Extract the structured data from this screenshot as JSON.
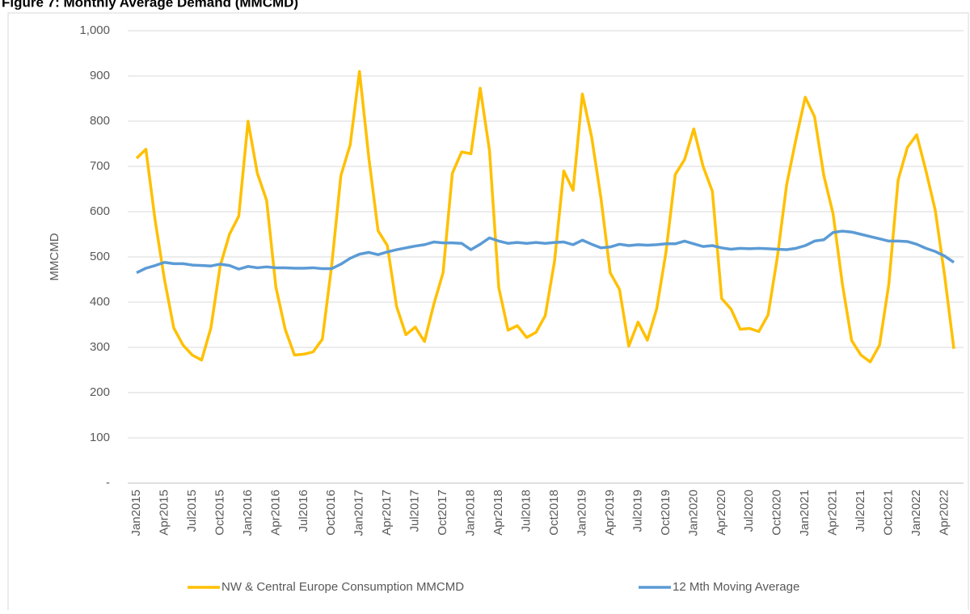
{
  "chart_data": {
    "type": "line",
    "title": "Figure 7: Monthly Average Demand (MMCMD)",
    "y_label": "MMCMD",
    "categories": [
      "Jan2015",
      null,
      null,
      "Apr2015",
      null,
      null,
      "Jul2015",
      null,
      null,
      "Oct2015",
      null,
      null,
      "Jan2016",
      null,
      null,
      "Apr2016",
      null,
      null,
      "Jul2016",
      null,
      null,
      "Oct2016",
      null,
      null,
      "Jan2017",
      null,
      null,
      "Apr2017",
      null,
      null,
      "Jul2017",
      null,
      null,
      "Oct2017",
      null,
      null,
      "Jan2018",
      null,
      null,
      "Apr2018",
      null,
      null,
      "Jul2018",
      null,
      null,
      "Oct2018",
      null,
      null,
      "Jan2019",
      null,
      null,
      "Apr2019",
      null,
      null,
      "Jul2019",
      null,
      null,
      "Oct2019",
      null,
      null,
      "Jan2020",
      null,
      null,
      "Apr2020",
      null,
      null,
      "Jul2020",
      null,
      null,
      "Oct2020",
      null,
      null,
      "Jan2021",
      null,
      null,
      "Apr2021",
      null,
      null,
      "Jul2021",
      null,
      null,
      "Oct2021",
      null,
      null,
      "Jan2022",
      null,
      null,
      "Apr2022",
      null
    ],
    "series": [
      {
        "name": "NW & Central Europe Consumption MMCMD",
        "color": "#FFC000",
        "values": [
          718,
          738,
          580,
          450,
          343,
          305,
          283,
          272,
          343,
          480,
          550,
          590,
          800,
          685,
          625,
          433,
          340,
          283,
          285,
          290,
          318,
          480,
          680,
          748,
          910,
          720,
          558,
          525,
          390,
          328,
          345,
          313,
          395,
          465,
          685,
          732,
          728,
          873,
          735,
          432,
          338,
          348,
          322,
          333,
          370,
          490,
          690,
          647,
          860,
          765,
          630,
          465,
          428,
          303,
          356,
          316,
          385,
          510,
          682,
          715,
          783,
          700,
          645,
          408,
          385,
          340,
          342,
          335,
          372,
          500,
          660,
          760,
          853,
          810,
          680,
          595,
          440,
          315,
          283,
          268,
          305,
          440,
          670,
          742,
          770,
          690,
          603,
          460,
          297
        ]
      },
      {
        "name": "12 Mth Moving Average",
        "color": "#5B9BD5",
        "values": [
          465,
          475,
          481,
          488,
          485,
          485,
          482,
          481,
          480,
          484,
          481,
          473,
          479,
          476,
          478,
          476,
          476,
          475,
          475,
          476,
          474,
          474,
          484,
          497,
          506,
          510,
          505,
          511,
          516,
          520,
          524,
          527,
          533,
          531,
          531,
          530,
          516,
          528,
          542,
          535,
          530,
          532,
          530,
          532,
          530,
          532,
          533,
          527,
          537,
          528,
          520,
          522,
          528,
          525,
          527,
          526,
          527,
          529,
          529,
          535,
          529,
          523,
          525,
          520,
          517,
          519,
          518,
          519,
          518,
          517,
          516,
          519,
          525,
          535,
          538,
          554,
          557,
          555,
          550,
          545,
          540,
          535,
          535,
          534,
          528,
          519,
          512,
          502,
          488
        ]
      }
    ],
    "ylim": [
      0,
      1000
    ],
    "yticks": [
      {
        "value": 0,
        "label": "-"
      },
      100,
      200,
      300,
      400,
      500,
      600,
      700,
      800,
      900,
      {
        "value": 1000,
        "label": "1,000"
      }
    ],
    "grid": true,
    "legend": "bottom"
  }
}
